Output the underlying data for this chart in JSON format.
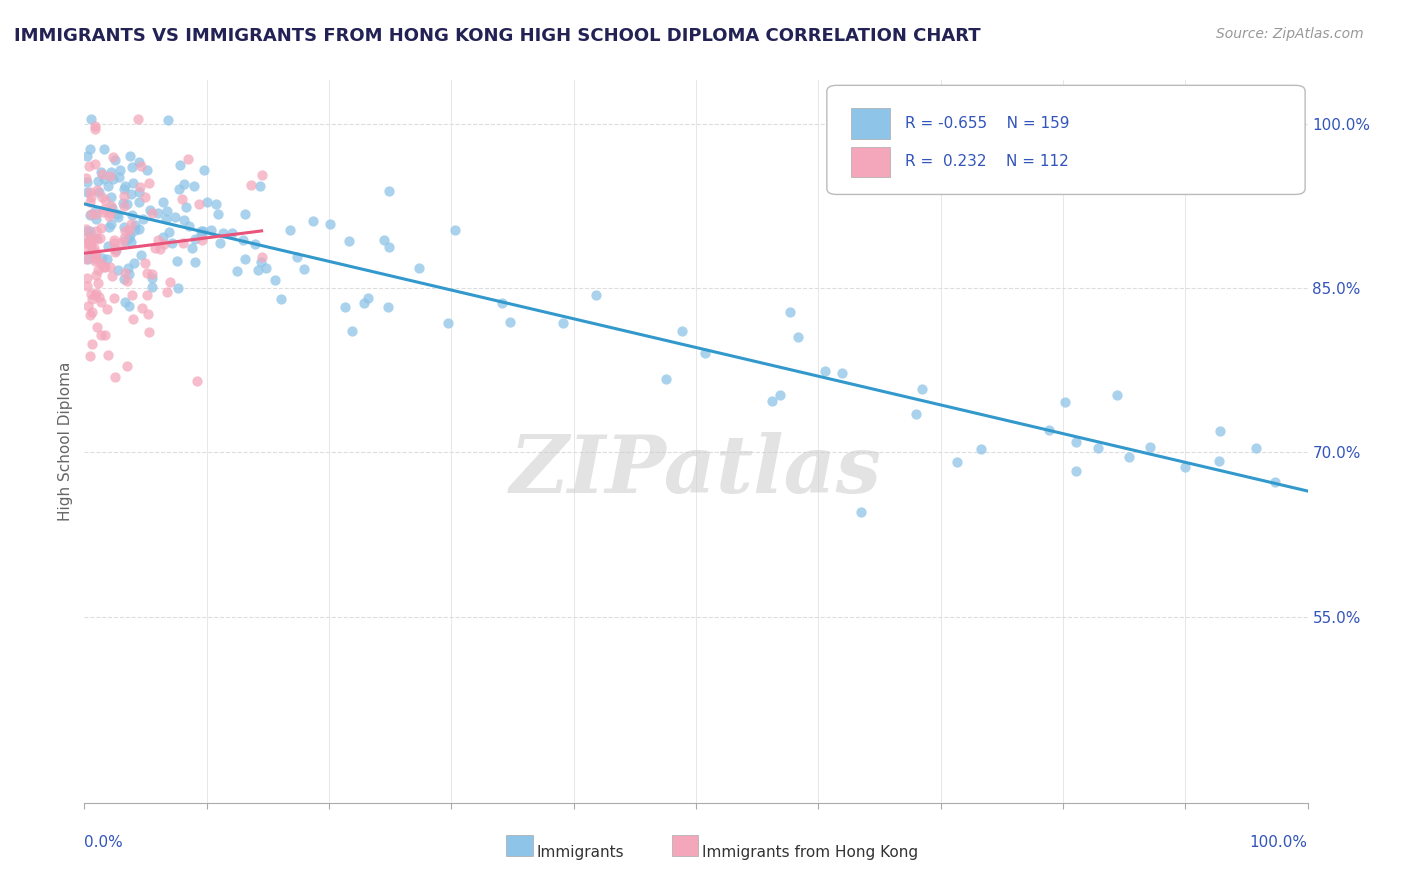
{
  "title": "IMMIGRANTS VS IMMIGRANTS FROM HONG KONG HIGH SCHOOL DIPLOMA CORRELATION CHART",
  "source": "Source: ZipAtlas.com",
  "ylabel": "High School Diploma",
  "legend_label1": "Immigrants",
  "legend_label2": "Immigrants from Hong Kong",
  "r1": -0.655,
  "n1": 159,
  "r2": 0.232,
  "n2": 112,
  "watermark": "ZIPatlas",
  "blue_color": "#8ec4e8",
  "pink_color": "#f4a7bb",
  "blue_line_color": "#3399cc",
  "pink_line_color": "#e8547a",
  "axis_label_color": "#3355bb",
  "title_color": "#222255",
  "xlim": [
    0,
    100
  ],
  "ylim": [
    38,
    104
  ],
  "ytick_vals": [
    55,
    70,
    85,
    100
  ],
  "ytick_labs": [
    "55.0%",
    "70.0%",
    "85.0%",
    "100.0%"
  ],
  "background_color": "#ffffff",
  "grid_color": "#dddddd"
}
